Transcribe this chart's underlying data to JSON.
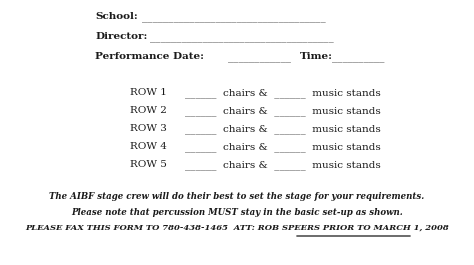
{
  "bg_color": "#ffffff",
  "text_color": "#1a1a1a",
  "school_label": "School:",
  "director_label": "Director:",
  "perf_date_label": "Performance Date:",
  "time_label": "Time:",
  "rows": [
    "ROW 1",
    "ROW 2",
    "ROW 3",
    "ROW 4",
    "ROW 5"
  ],
  "italic_line1": "The AIBF stage crew will do their best to set the stage for your requirements.",
  "italic_line2": "Please note that percussion MUST stay in the basic set-up as shown.",
  "bold_italic_prefix": "PLEASE FAX THIS FORM TO 780-438-1465  ATT: ROB SPEERS ",
  "bold_italic_underline": "PRIOR TO MARCH 1, 2008",
  "figsize": [
    4.74,
    2.65
  ],
  "dpi": 100
}
